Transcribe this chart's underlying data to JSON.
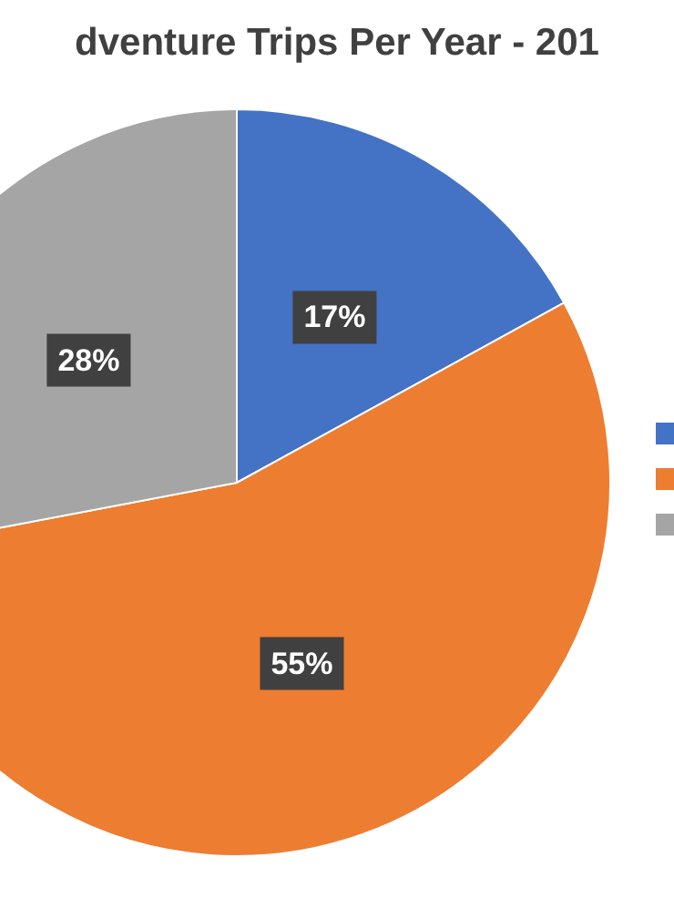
{
  "chart_data": {
    "type": "pie",
    "title": "dventure Trips Per Year - 201",
    "categories": [
      null,
      null,
      null
    ],
    "values": [
      17,
      55,
      28
    ],
    "colors": [
      "#4472c4",
      "#ed7d31",
      "#a5a5a5"
    ],
    "value_labels": [
      "17%",
      "55%",
      "28%"
    ]
  }
}
